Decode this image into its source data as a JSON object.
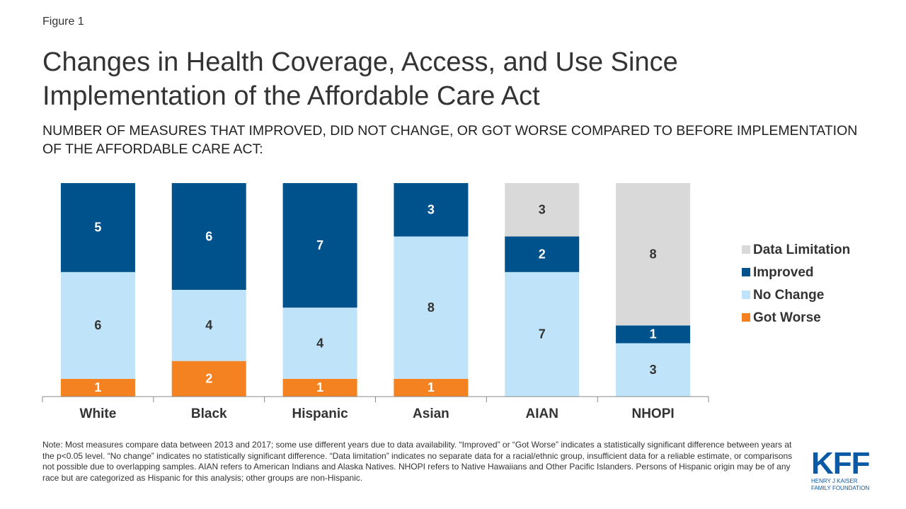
{
  "figure_label": "Figure 1",
  "chart_data": {
    "type": "stacked_bar",
    "title": "Changes in Health Coverage, Access, and Use Since Implementation of the Affordable Care Act",
    "subtitle": "NUMBER OF MEASURES THAT IMPROVED, DID NOT CHANGE, OR GOT WORSE COMPARED TO BEFORE IMPLEMENTATION OF THE AFFORDABLE CARE ACT:",
    "categories": [
      "White",
      "Black",
      "Hispanic",
      "Asian",
      "AIAN",
      "NHOPI"
    ],
    "series": [
      {
        "name": "Got Worse",
        "color": "#f58220",
        "label_color": "#ffffff",
        "values": [
          1,
          2,
          1,
          1,
          null,
          null
        ]
      },
      {
        "name": "No Change",
        "color": "#bfe3f9",
        "label_color": "#333333",
        "values": [
          6,
          4,
          4,
          8,
          7,
          3
        ]
      },
      {
        "name": "Improved",
        "color": "#00528c",
        "label_color": "#ffffff",
        "values": [
          5,
          6,
          7,
          3,
          2,
          1
        ]
      },
      {
        "name": "Data Limitation",
        "color": "#d9d9d9",
        "label_color": "#333333",
        "values": [
          null,
          null,
          null,
          null,
          3,
          8
        ]
      }
    ],
    "legend": "right"
  },
  "note": "Note: Most measures compare data between 2013 and 2017; some use different years due to data availability. “Improved” or “Got Worse” indicates a statistically significant difference between years at the p<0.05 level. “No change” indicates no statistically significant difference. “Data limitation” indicates no separate data for a racial/ethnic group, insufficient data for a reliable estimate, or comparisons not possible due to overlapping samples. AIAN refers to American Indians and Alaska Natives. NHOPI refers to Native Hawaiians and Other Pacific Islanders. Persons of Hispanic origin may be of any race but are categorized as Hispanic for this analysis; other groups are non-Hispanic.",
  "logo": {
    "mark": "KFF",
    "lines": [
      "HENRY J KAISER",
      "FAMILY FOUNDATION"
    ]
  }
}
